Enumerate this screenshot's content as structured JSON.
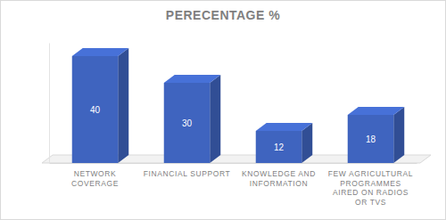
{
  "chart_data": {
    "type": "bar",
    "title": "PERECENTAGE %",
    "categories": [
      "NETWORK COVERAGE",
      "FINANCIAL SUPPORT",
      "KNOWLEDGE AND INFORMATION",
      "FEW AGRICULTURAL PROGRAMMES AIRED ON RADIOS OR TVS"
    ],
    "values": [
      40,
      30,
      12,
      18
    ],
    "color": "#3f64bf",
    "ylim": [
      0,
      45
    ],
    "grid": false,
    "data_labels": true,
    "tick_labels": "x"
  }
}
